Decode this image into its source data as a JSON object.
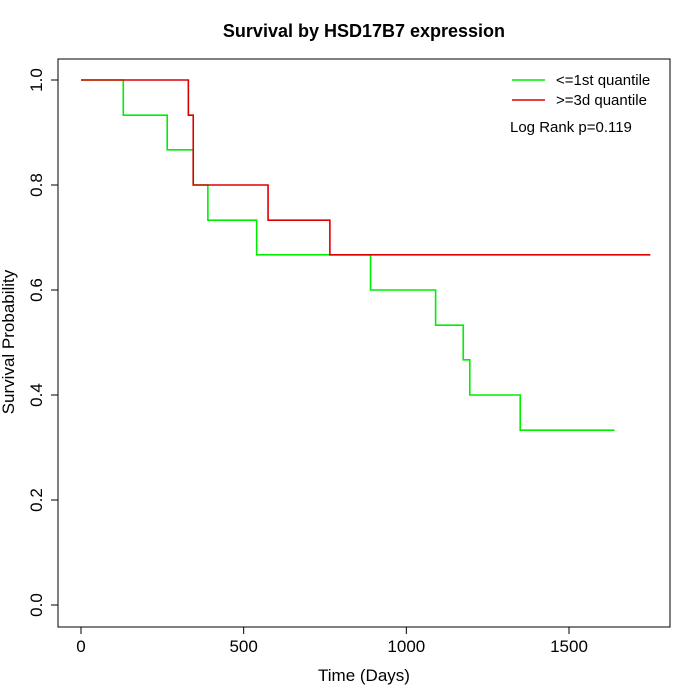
{
  "chart_data": {
    "type": "line",
    "step": true,
    "title": "Survival by HSD17B7 expression",
    "xlabel": "Time (Days)",
    "ylabel": "Survival Probability",
    "xlim": [
      0,
      1750
    ],
    "ylim": [
      0,
      1
    ],
    "xticks": [
      0,
      500,
      1000,
      1500
    ],
    "yticks": [
      0.0,
      0.2,
      0.4,
      0.6,
      0.8,
      1.0
    ],
    "xtick_labels": [
      "0",
      "500",
      "1000",
      "1500"
    ],
    "ytick_labels": [
      "0.0",
      "0.2",
      "0.4",
      "0.6",
      "0.8",
      "1.0"
    ],
    "grid": false,
    "legend_position": "top-right",
    "annotation": "Log Rank p=0.119",
    "series": [
      {
        "name": "<=1st quantile",
        "color": "#00ee00",
        "x": [
          0,
          130,
          265,
          345,
          390,
          540,
          890,
          1090,
          1175,
          1195,
          1350,
          1640
        ],
        "y": [
          1.0,
          0.933,
          0.867,
          0.8,
          0.733,
          0.667,
          0.6,
          0.533,
          0.467,
          0.4,
          0.333,
          0.333
        ]
      },
      {
        "name": ">=3d quantile",
        "color": "#dd0000",
        "x": [
          0,
          330,
          345,
          575,
          765,
          1750
        ],
        "y": [
          1.0,
          0.933,
          0.8,
          0.733,
          0.667,
          0.667
        ]
      }
    ]
  }
}
